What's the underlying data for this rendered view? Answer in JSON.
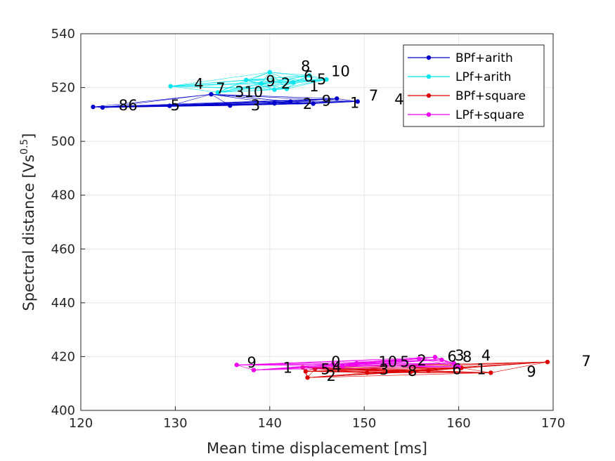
{
  "chart_data": {
    "type": "scatter",
    "xlabel": "Mean time displacement [ms]",
    "ylabel": "Spectral distance [Vs",
    "ylabel_sup": "0.5",
    "ylabel_end": "]",
    "xlim": [
      120,
      170
    ],
    "ylim": [
      400,
      540
    ],
    "xticks": [
      120,
      130,
      140,
      150,
      160,
      170
    ],
    "yticks": [
      400,
      420,
      440,
      460,
      480,
      500,
      520,
      540
    ],
    "grid": true,
    "legend_position": "top-right",
    "series": [
      {
        "name": "BPf+arith",
        "color": "#0000cc",
        "points": [
          {
            "x": 121.3,
            "y": 512.8
          },
          {
            "x": 122.3,
            "y": 512.6
          },
          {
            "x": 129.4,
            "y": 513.2
          },
          {
            "x": 133.8,
            "y": 517.5
          },
          {
            "x": 135.8,
            "y": 513.3
          },
          {
            "x": 140.5,
            "y": 514.1
          },
          {
            "x": 142.2,
            "y": 514.8
          },
          {
            "x": 144.6,
            "y": 514.0
          },
          {
            "x": 147.1,
            "y": 515.9
          },
          {
            "x": 149.3,
            "y": 514.8
          }
        ],
        "labels": [
          {
            "text": "8",
            "x": 124.0,
            "y": 511.5
          },
          {
            "x": 125.0,
            "y": 511.5,
            "text": "6"
          },
          {
            "text": "5",
            "x": 129.5,
            "y": 511.5
          },
          {
            "text": "3",
            "x": 138.0,
            "y": 511.5
          },
          {
            "text": "2",
            "x": 143.5,
            "y": 512.0
          },
          {
            "text": "9",
            "x": 145.5,
            "y": 513.2
          },
          {
            "text": "1",
            "x": 148.5,
            "y": 512.5
          },
          {
            "text": "7",
            "x": 150.5,
            "y": 515.2
          },
          {
            "text": "4",
            "x": 153.2,
            "y": 513.8
          }
        ]
      },
      {
        "name": "LPf+arith",
        "color": "#00e5ee",
        "points": [
          {
            "x": 129.5,
            "y": 520.5
          },
          {
            "x": 134.5,
            "y": 518.2
          },
          {
            "x": 137.5,
            "y": 522.8
          },
          {
            "x": 139.1,
            "y": 521.5
          },
          {
            "x": 140.0,
            "y": 525.7
          },
          {
            "x": 140.5,
            "y": 519.2
          },
          {
            "x": 141.8,
            "y": 519.5
          },
          {
            "x": 142.5,
            "y": 521.9
          },
          {
            "x": 144.2,
            "y": 524.5
          },
          {
            "x": 146.0,
            "y": 523.0
          }
        ],
        "labels": [
          {
            "text": "4",
            "x": 132.0,
            "y": 519.5
          },
          {
            "text": "7",
            "x": 134.3,
            "y": 517.8
          },
          {
            "text": "3",
            "x": 136.3,
            "y": 516.5
          },
          {
            "text": "10",
            "x": 137.3,
            "y": 516.5
          },
          {
            "text": "9",
            "x": 139.6,
            "y": 520.6
          },
          {
            "text": "2",
            "x": 141.2,
            "y": 519.6
          },
          {
            "text": "1",
            "x": 144.2,
            "y": 518.6
          },
          {
            "text": "8",
            "x": 143.3,
            "y": 526.0
          },
          {
            "text": "6",
            "x": 143.6,
            "y": 522.2
          },
          {
            "text": "5",
            "x": 145.0,
            "y": 521.2
          },
          {
            "text": "10",
            "x": 146.5,
            "y": 524.2
          }
        ]
      },
      {
        "name": "BPf+square",
        "color": "#dd0000",
        "points": [
          {
            "x": 143.5,
            "y": 416.0
          },
          {
            "x": 143.8,
            "y": 414.5
          },
          {
            "x": 144.0,
            "y": 412.2
          },
          {
            "x": 144.8,
            "y": 415.5
          },
          {
            "x": 150.3,
            "y": 414.0
          },
          {
            "x": 154.9,
            "y": 414.3
          },
          {
            "x": 156.8,
            "y": 414.8
          },
          {
            "x": 160.3,
            "y": 415.8
          },
          {
            "x": 163.4,
            "y": 414.0
          },
          {
            "x": 169.4,
            "y": 418.0
          }
        ],
        "labels": [
          {
            "text": "5",
            "x": 145.4,
            "y": 413.5
          },
          {
            "text": "4",
            "x": 146.6,
            "y": 414.2
          },
          {
            "text": "2",
            "x": 146.0,
            "y": 411.0
          },
          {
            "text": "3",
            "x": 151.6,
            "y": 413.3
          },
          {
            "text": "8",
            "x": 154.6,
            "y": 412.8
          },
          {
            "text": "6",
            "x": 159.3,
            "y": 413.5
          },
          {
            "text": "1",
            "x": 161.9,
            "y": 413.5
          },
          {
            "text": "9",
            "x": 167.2,
            "y": 412.5
          },
          {
            "text": "7",
            "x": 173.0,
            "y": 416.5
          }
        ]
      },
      {
        "name": "LPf+square",
        "color": "#ee00ee",
        "points": [
          {
            "x": 136.5,
            "y": 416.9
          },
          {
            "x": 138.3,
            "y": 415.0
          },
          {
            "x": 146.7,
            "y": 417.2
          },
          {
            "x": 147.7,
            "y": 416.5
          },
          {
            "x": 149.2,
            "y": 417.5
          },
          {
            "x": 155.8,
            "y": 419.2
          },
          {
            "x": 157.5,
            "y": 419.8
          },
          {
            "x": 158.2,
            "y": 418.8
          },
          {
            "x": 159.5,
            "y": 417.5
          },
          {
            "x": 160.0,
            "y": 416.2
          }
        ],
        "labels": [
          {
            "text": "9",
            "x": 137.6,
            "y": 415.9
          },
          {
            "text": "1",
            "x": 141.4,
            "y": 414.0
          },
          {
            "text": "0",
            "x": 146.5,
            "y": 416.2
          },
          {
            "text": "10",
            "x": 151.5,
            "y": 416.2
          },
          {
            "text": "5",
            "x": 153.8,
            "y": 416.2
          },
          {
            "text": "2",
            "x": 155.6,
            "y": 416.7
          },
          {
            "text": "6",
            "x": 158.8,
            "y": 418.2
          },
          {
            "text": "3",
            "x": 159.6,
            "y": 418.5
          },
          {
            "text": "8",
            "x": 160.4,
            "y": 418.0
          },
          {
            "text": "4",
            "x": 162.4,
            "y": 418.5
          }
        ]
      }
    ]
  }
}
